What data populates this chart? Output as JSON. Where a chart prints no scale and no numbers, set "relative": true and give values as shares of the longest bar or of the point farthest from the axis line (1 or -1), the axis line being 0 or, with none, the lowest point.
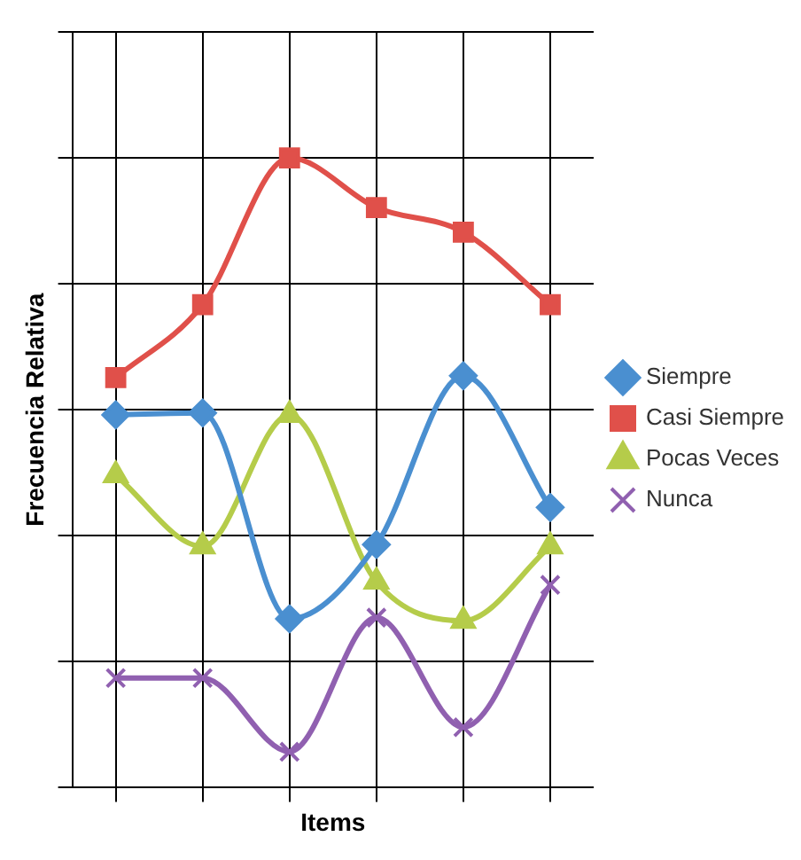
{
  "chart_data": {
    "type": "line",
    "xlabel": "Items",
    "ylabel": "Frecuencia Relativa",
    "relative": true,
    "categories": [
      null,
      null,
      null,
      null,
      null,
      null
    ],
    "grid": true,
    "legend": "right",
    "series": [
      {
        "name": "Siempre",
        "color": "#4a8fd0",
        "marker": "diamond",
        "values": [
          0.592,
          0.595,
          0.268,
          0.386,
          0.654,
          0.445
        ]
      },
      {
        "name": "Casi Siempre",
        "color": "#e0504a",
        "marker": "square",
        "values": [
          0.651,
          0.767,
          1,
          0.921,
          0.882,
          0.767
        ]
      },
      {
        "name": "Pocas Veces",
        "color": "#b5cc4a",
        "marker": "triangle",
        "values": [
          0.496,
          0.383,
          0.592,
          0.327,
          0.265,
          0.383
        ]
      },
      {
        "name": "Nunca",
        "color": "#9060b0",
        "marker": "cross",
        "values": [
          0.174,
          0.174,
          0.057,
          0.27,
          0.096,
          0.322
        ]
      }
    ]
  }
}
